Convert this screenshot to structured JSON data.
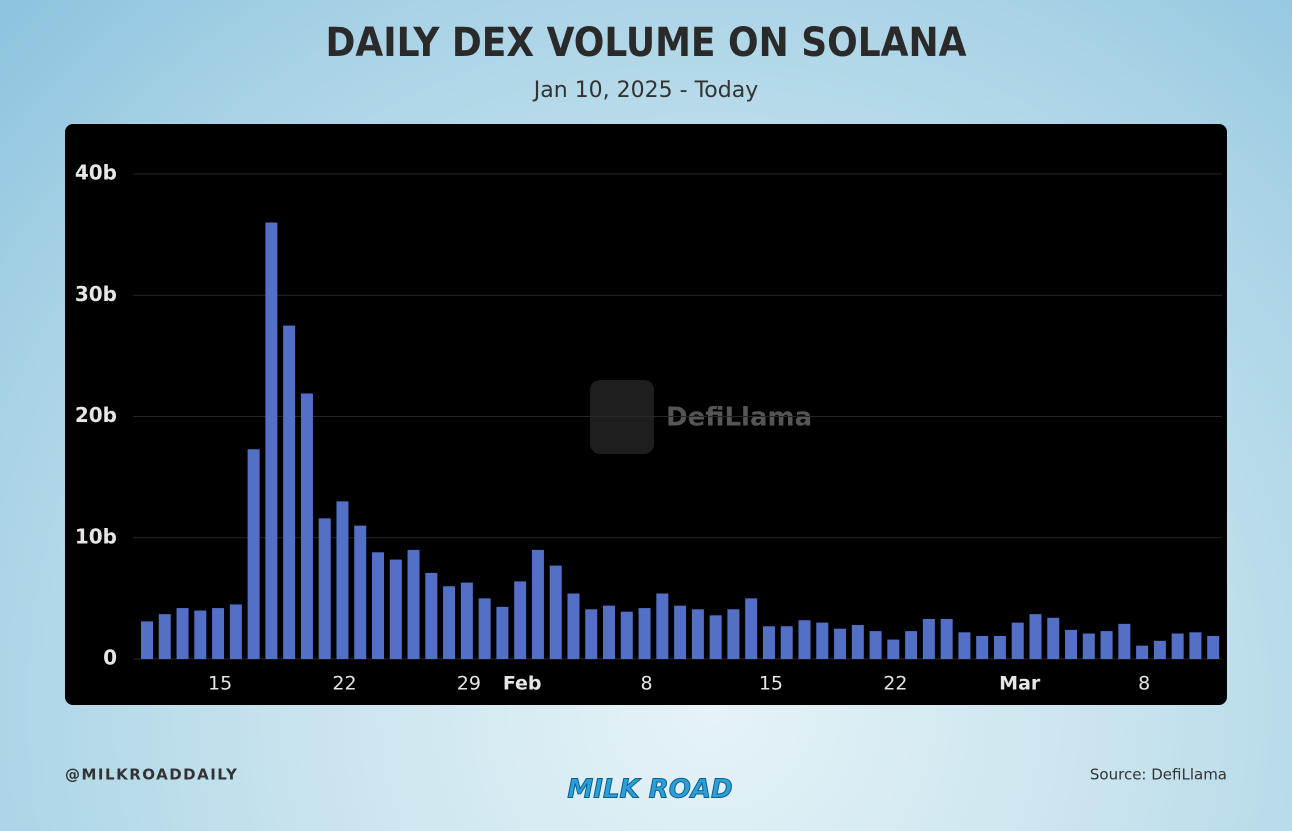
{
  "chart_data": {
    "type": "bar",
    "title": "DAILY DEX VOLUME ON SOLANA",
    "subtitle": "Jan 10, 2025 - Today",
    "watermark": "DefiLlama",
    "categories": [
      null,
      null,
      null,
      null,
      "15",
      null,
      null,
      null,
      null,
      null,
      null,
      "22",
      null,
      null,
      null,
      null,
      null,
      null,
      "29",
      null,
      null,
      "Feb",
      null,
      null,
      null,
      null,
      null,
      null,
      "8",
      null,
      null,
      null,
      null,
      null,
      null,
      "15",
      null,
      null,
      null,
      null,
      null,
      null,
      "22",
      null,
      null,
      null,
      null,
      null,
      null,
      "Mar",
      null,
      null,
      null,
      null,
      null,
      null,
      "8",
      null,
      null,
      null,
      null
    ],
    "values": [
      3.1,
      3.7,
      4.2,
      4.0,
      4.2,
      4.5,
      17.3,
      36,
      27.5,
      21.9,
      11.6,
      13,
      11,
      8.8,
      8.2,
      9,
      7.1,
      6,
      6.3,
      5,
      4.3,
      6.4,
      9,
      7.7,
      5.4,
      4.1,
      4.4,
      3.9,
      4.2,
      5.4,
      4.4,
      4.1,
      3.6,
      4.1,
      5,
      2.7,
      2.7,
      3.2,
      3,
      2.5,
      2.8,
      2.3,
      1.6,
      2.3,
      3.3,
      3.3,
      2.2,
      1.9,
      1.9,
      3,
      3.7,
      3.4,
      2.4,
      2.1,
      2.3,
      2.9,
      1.1,
      1.5,
      2.1,
      2.2,
      1.9
    ],
    "color": "#5470c6",
    "ylim": [
      0,
      40
    ],
    "yticks": [
      0,
      {
        "value": 10,
        "label": "10b"
      },
      {
        "value": 20,
        "label": "20b"
      },
      {
        "value": 30,
        "label": "30b"
      },
      {
        "value": 40,
        "label": "40b"
      }
    ],
    "grid": true
  },
  "footer": {
    "handle": "@MILKROADDAILY",
    "logo": "MILK ROAD",
    "source": "Source: DefiLlama"
  }
}
